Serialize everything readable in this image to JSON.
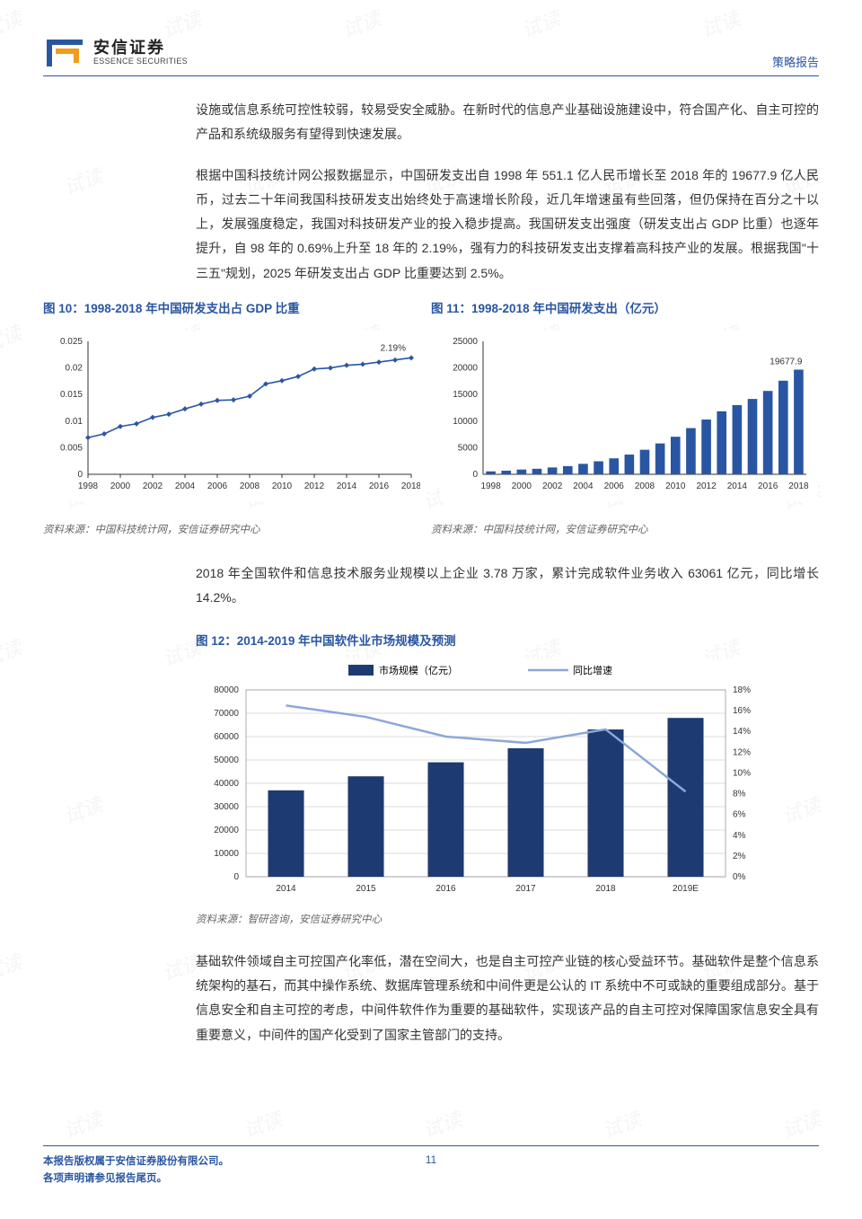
{
  "header": {
    "logo_cn": "安信证券",
    "logo_en": "ESSENCE SECURITIES",
    "report_type": "策略报告",
    "logo_colors": {
      "outer": "#2956a3",
      "inner": "#f39b1a"
    }
  },
  "watermark_text": "试读",
  "para1": "设施或信息系统可控性较弱，较易受安全威胁。在新时代的信息产业基础设施建设中，符合国产化、自主可控的产品和系统级服务有望得到快速发展。",
  "para2": "根据中国科技统计网公报数据显示，中国研发支出自 1998 年 551.1 亿人民币增长至 2018 年的 19677.9 亿人民币，过去二十年间我国科技研发支出始终处于高速增长阶段，近几年增速虽有些回落，但仍保持在百分之十以上，发展强度稳定，我国对科技研发产业的投入稳步提高。我国研发支出强度（研发支出占 GDP 比重）也逐年提升，自 98 年的 0.69%上升至 18 年的 2.19%，强有力的科技研发支出支撑着高科技产业的发展。根据我国\"十三五\"规划，2025 年研发支出占 GDP 比重要达到 2.5%。",
  "fig10": {
    "title": "图 10：1998-2018 年中国研发支出占 GDP 比重",
    "type": "line",
    "x_labels": [
      "1998",
      "2000",
      "2002",
      "2004",
      "2006",
      "2008",
      "2010",
      "2012",
      "2014",
      "2016",
      "2018"
    ],
    "x_years": [
      1998,
      1999,
      2000,
      2001,
      2002,
      2003,
      2004,
      2005,
      2006,
      2007,
      2008,
      2009,
      2010,
      2011,
      2012,
      2013,
      2014,
      2015,
      2016,
      2017,
      2018
    ],
    "y_values": [
      0.0069,
      0.0076,
      0.009,
      0.0095,
      0.0107,
      0.0113,
      0.0123,
      0.0132,
      0.0139,
      0.014,
      0.0147,
      0.017,
      0.0176,
      0.0184,
      0.0198,
      0.02,
      0.0205,
      0.0207,
      0.0211,
      0.0215,
      0.0219
    ],
    "ylim": [
      0,
      0.025
    ],
    "ytick_step": 0.005,
    "ytick_labels": [
      "0",
      "0.005",
      "0.01",
      "0.015",
      "0.02",
      "0.025"
    ],
    "line_color": "#2956a3",
    "marker": "diamond",
    "marker_color": "#2956a3",
    "end_label": "2.19%",
    "background": "#ffffff",
    "source": "资料来源：中国科技统计网，安信证券研究中心"
  },
  "fig11": {
    "title": "图 11：1998-2018 年中国研发支出（亿元）",
    "type": "bar",
    "x_labels": [
      "1998",
      "2000",
      "2002",
      "2004",
      "2006",
      "2008",
      "2010",
      "2012",
      "2014",
      "2016",
      "2018"
    ],
    "x_years": [
      1998,
      1999,
      2000,
      2001,
      2002,
      2003,
      2004,
      2005,
      2006,
      2007,
      2008,
      2009,
      2010,
      2011,
      2012,
      2013,
      2014,
      2015,
      2016,
      2017,
      2018
    ],
    "y_values": [
      551,
      679,
      896,
      1042,
      1288,
      1540,
      1966,
      2450,
      3003,
      3710,
      4616,
      5802,
      7063,
      8687,
      10298,
      11847,
      13016,
      14170,
      15677,
      17606,
      19678
    ],
    "ylim": [
      0,
      25000
    ],
    "ytick_step": 5000,
    "ytick_labels": [
      "0",
      "5000",
      "10000",
      "15000",
      "20000",
      "25000"
    ],
    "bar_color": "#2956a3",
    "end_label": "19677.9",
    "background": "#ffffff",
    "source": "资料来源：中国科技统计网，安信证券研究中心"
  },
  "para3": "2018 年全国软件和信息技术服务业规模以上企业 3.78 万家，累计完成软件业务收入 63061 亿元，同比增长 14.2%。",
  "fig12": {
    "title": "图 12：2014-2019 年中国软件业市场规模及预测",
    "type": "bar+line",
    "legend_bar": "市场规模（亿元）",
    "legend_line": "同比增速",
    "categories": [
      "2014",
      "2015",
      "2016",
      "2017",
      "2018",
      "2019E"
    ],
    "bar_values": [
      37000,
      43000,
      49000,
      55000,
      63061,
      68000
    ],
    "line_values": [
      0.165,
      0.154,
      0.135,
      0.129,
      0.142,
      0.082
    ],
    "y1_lim": [
      0,
      80000
    ],
    "y1_tick_step": 10000,
    "y1_tick_labels": [
      "0",
      "10000",
      "20000",
      "30000",
      "40000",
      "50000",
      "60000",
      "70000",
      "80000"
    ],
    "y2_lim": [
      0,
      0.18
    ],
    "y2_tick_step": 0.02,
    "y2_tick_labels": [
      "0%",
      "2%",
      "4%",
      "6%",
      "8%",
      "10%",
      "12%",
      "14%",
      "16%",
      "18%"
    ],
    "bar_color": "#1e3a72",
    "line_color": "#8aa8d8",
    "grid_color": "#cfcfcf",
    "background": "#ffffff",
    "source": "资料来源：智研咨询，安信证券研究中心"
  },
  "para4": "基础软件领域自主可控国产化率低，潜在空间大，也是自主可控产业链的核心受益环节。基础软件是整个信息系统架构的基石，而其中操作系统、数据库管理系统和中间件更是公认的 IT 系统中不可或缺的重要组成部分。基于信息安全和自主可控的考虑，中间件软件作为重要的基础软件，实现该产品的自主可控对保障国家信息安全具有重要意义，中间件的国产化受到了国家主管部门的支持。",
  "footer": {
    "line1": "本报告版权属于安信证券股份有限公司。",
    "line2": "各项声明请参见报告尾页。",
    "page": "11"
  }
}
